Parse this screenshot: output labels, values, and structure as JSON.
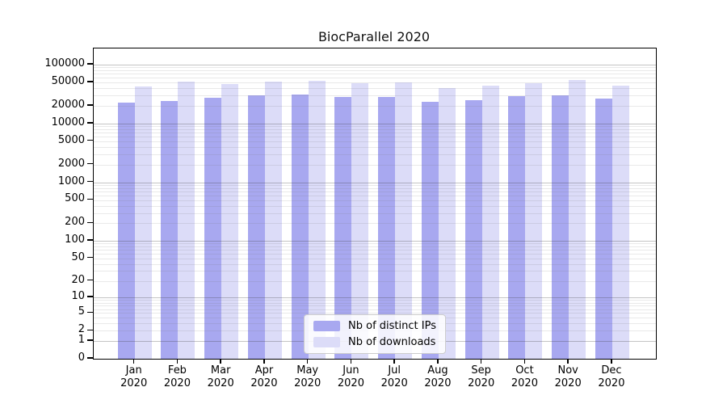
{
  "chart_data": {
    "type": "bar",
    "title": "BiocParallel 2020",
    "categories": [
      "Jan",
      "Feb",
      "Mar",
      "Apr",
      "May",
      "Jun",
      "Jul",
      "Aug",
      "Sep",
      "Oct",
      "Nov",
      "Dec"
    ],
    "x_sublabel": "2020",
    "series": [
      {
        "name": "Nb of distinct IPs",
        "color": "#a8a8f0",
        "values": [
          22800,
          23900,
          27600,
          30000,
          30700,
          28200,
          28200,
          23300,
          25100,
          28900,
          30300,
          26700
        ]
      },
      {
        "name": "Nb of downloads",
        "color": "#dcdcf8",
        "values": [
          42600,
          50900,
          46800,
          52000,
          52600,
          47800,
          49400,
          39600,
          43900,
          48300,
          55000,
          43900
        ]
      }
    ],
    "y_ticks": [
      0,
      1,
      2,
      5,
      10,
      20,
      50,
      100,
      200,
      500,
      1000,
      2000,
      5000,
      10000,
      20000,
      50000,
      100000
    ],
    "y_scale": "log10(1+x)",
    "ylim": [
      0,
      188000
    ],
    "grid": "horizontal",
    "legend_position": "bottom-center",
    "colors": {
      "major_grid": "#c4c4c4",
      "minor_grid": "#ececec",
      "axis": "#000000",
      "background": "#ffffff"
    }
  }
}
